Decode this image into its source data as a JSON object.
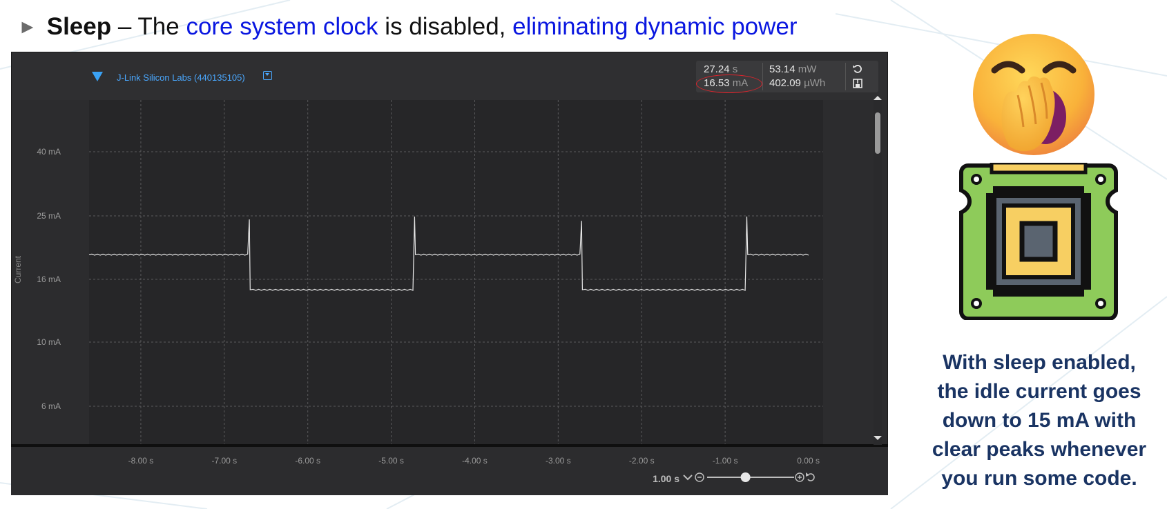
{
  "heading": {
    "bullet": "►",
    "term": "Sleep",
    "dash": " – The ",
    "highlight1": "core system clock",
    "middle": " is disabled, ",
    "highlight2": "eliminating dynamic power"
  },
  "profiler": {
    "device_name": "J-Link Silicon Labs (440135105)",
    "stats": {
      "time_value": "27.24",
      "time_unit": "s",
      "current_value": "16.53",
      "current_unit": "mA",
      "power_value": "53.14",
      "power_unit": "mW",
      "energy_value": "402.09",
      "energy_unit": "µWh"
    },
    "zoom_label": "1.00 s",
    "zoom_slider_fraction": 0.6
  },
  "chart_data": {
    "type": "line",
    "ylabel": "Current",
    "y_ticks": [
      "40 mA",
      "25 mA",
      "16 mA",
      "10 mA",
      "6 mA"
    ],
    "x_ticks": [
      "-8.00 s",
      "-7.00 s",
      "-6.00 s",
      "-5.00 s",
      "-4.00 s",
      "-3.00 s",
      "-2.00 s",
      "-1.00 s",
      "0.00 s"
    ],
    "xlim": [
      -8.62,
      0.0
    ],
    "series": [
      {
        "x": [
          -8.62,
          -6.72,
          -6.7,
          -6.69,
          -4.74,
          -4.72,
          -4.71,
          -2.74,
          -2.72,
          -2.71,
          -0.76,
          -0.74,
          -0.73,
          0.0
        ],
        "y": [
          19.5,
          19.5,
          24.5,
          15.0,
          15.0,
          24.9,
          19.5,
          19.5,
          24.3,
          15.0,
          15.0,
          24.9,
          19.5,
          19.5
        ]
      }
    ]
  },
  "caption": {
    "lines": [
      "With sleep enabled,",
      "the idle current goes",
      "down to 15 mA with",
      "clear peaks whenever",
      "you run some code."
    ]
  }
}
